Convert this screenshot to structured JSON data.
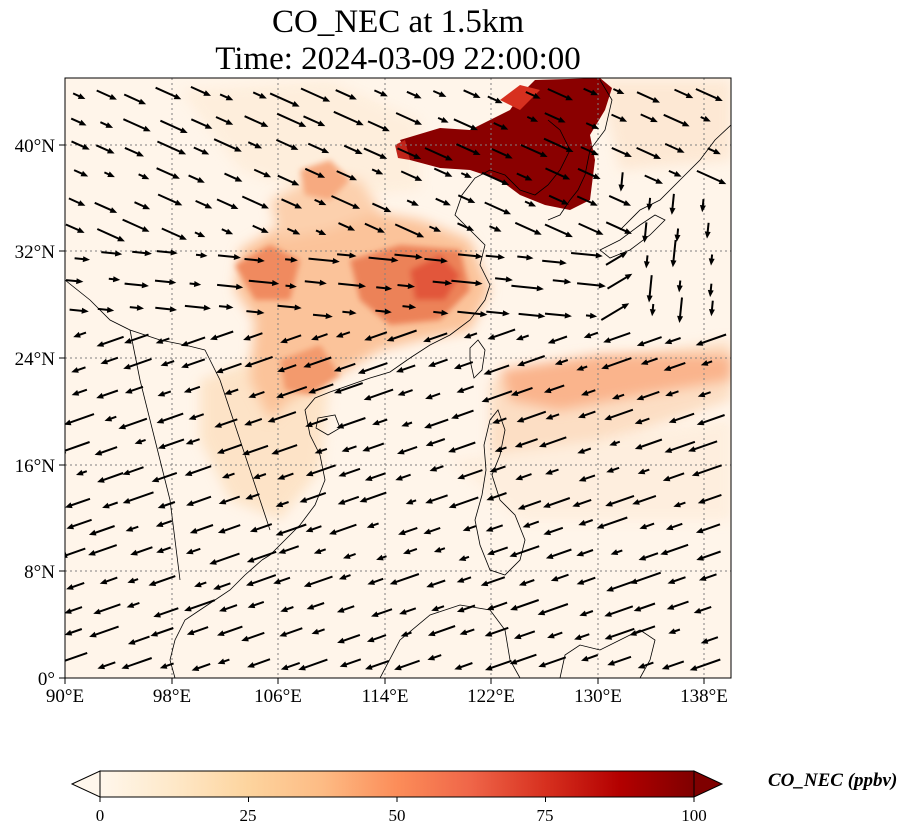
{
  "title": {
    "line1": "CO_NEC at 1.5km",
    "line2": "Time: 2024-03-09 22:00:00"
  },
  "map": {
    "projection": "PlateCarree",
    "lon_range": [
      90,
      140
    ],
    "lat_range": [
      0,
      45
    ],
    "lon_ticks": [
      {
        "value": 90,
        "label": "90°E"
      },
      {
        "value": 98,
        "label": "98°E"
      },
      {
        "value": 106,
        "label": "106°E"
      },
      {
        "value": 114,
        "label": "114°E"
      },
      {
        "value": 122,
        "label": "122°E"
      },
      {
        "value": 130,
        "label": "130°E"
      },
      {
        "value": 138,
        "label": "138°E"
      }
    ],
    "lat_ticks": [
      {
        "value": 0,
        "label": "0°"
      },
      {
        "value": 8,
        "label": "8°N"
      },
      {
        "value": 16,
        "label": "16°N"
      },
      {
        "value": 24,
        "label": "24°N"
      },
      {
        "value": 32,
        "label": "32°N"
      },
      {
        "value": 40,
        "label": "40°N"
      }
    ],
    "gridlines": "dotted gray",
    "field": "CO concentration, filled colormap OrRd",
    "vectors": "wind arrows"
  },
  "colorbar": {
    "label": "CO_NEC (ppbv)",
    "ticks": [
      "0",
      "25",
      "50",
      "75",
      "100"
    ],
    "range": [
      0,
      100
    ],
    "colors": [
      "#fff7ec",
      "#fee8c8",
      "#fdd49e",
      "#fdbb84",
      "#fc8d59",
      "#ef6548",
      "#d7301f",
      "#b30000",
      "#7f0000"
    ],
    "extend": "both"
  }
}
